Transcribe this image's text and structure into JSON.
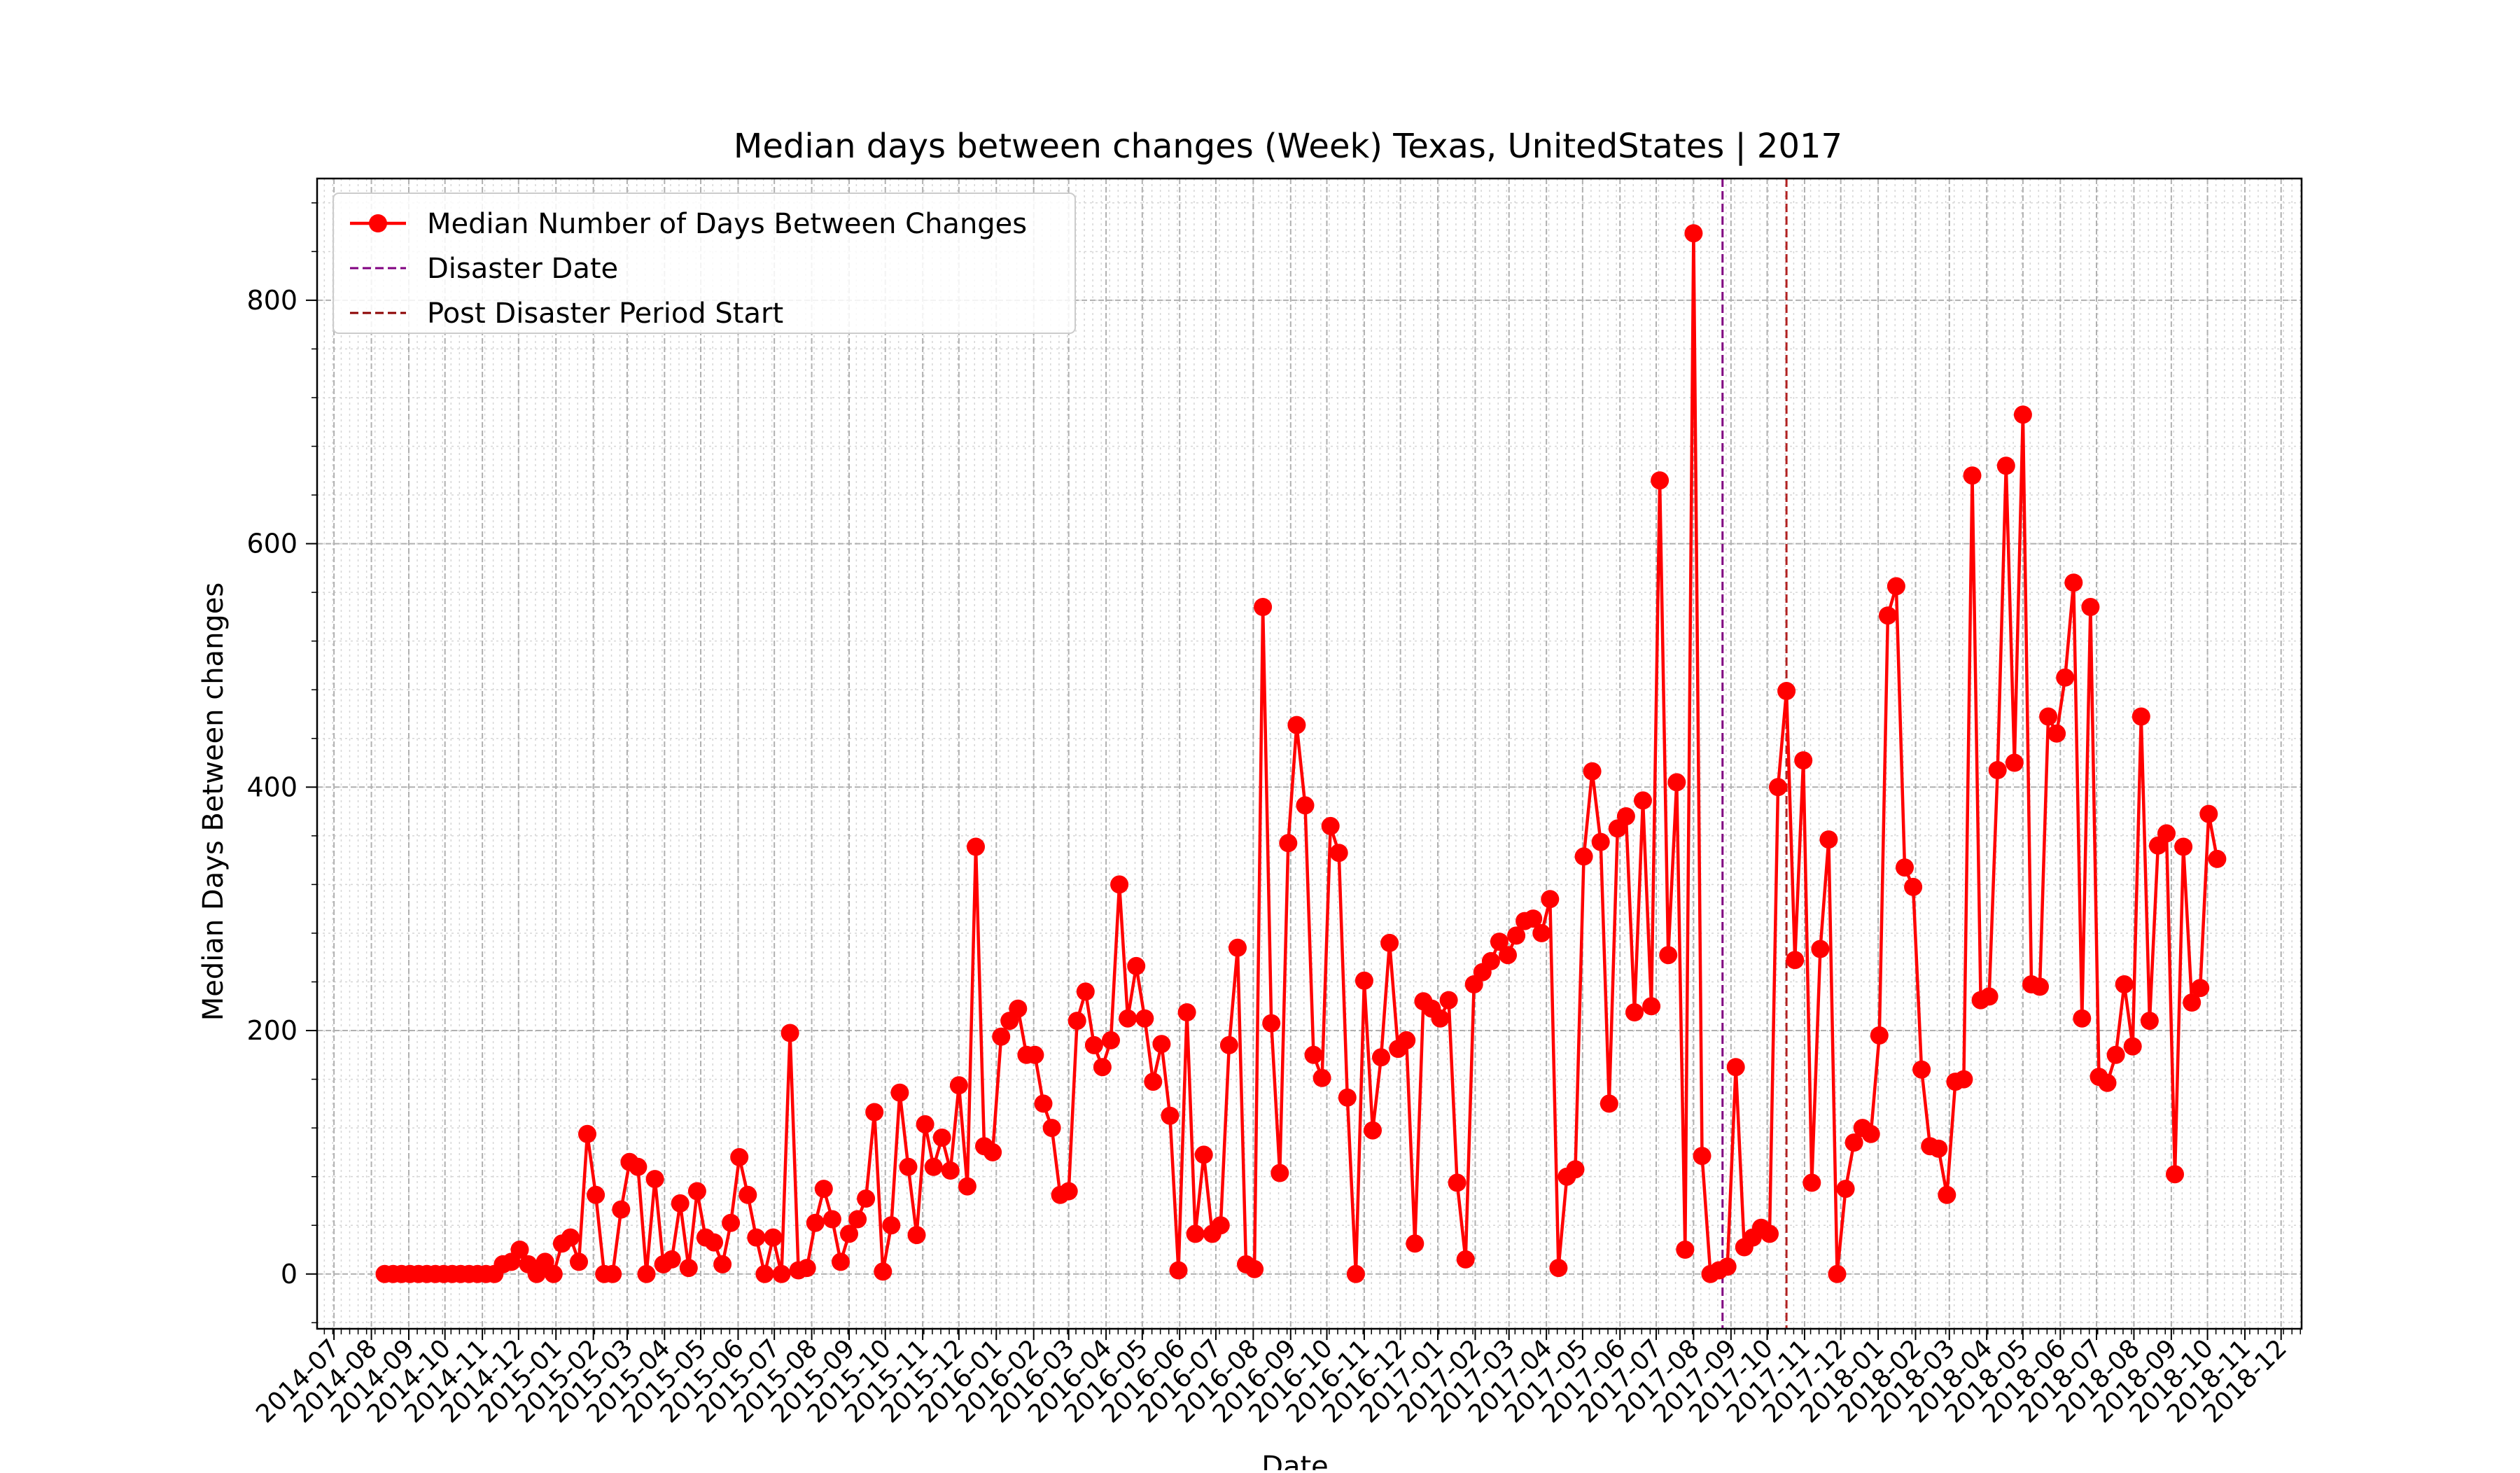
{
  "chart_data": {
    "type": "line",
    "title": "Median days between changes (Week) Texas, UnitedStates | 2017",
    "xlabel": "Date",
    "ylabel": "Median Days Between changes",
    "ylim": [
      -45,
      900
    ],
    "xlim": [
      "2014-06-17",
      "2018-12-18"
    ],
    "yticks": [
      0,
      200,
      400,
      600,
      800
    ],
    "xticks": [
      "2014-07",
      "2014-08",
      "2014-09",
      "2014-10",
      "2014-11",
      "2014-12",
      "2015-01",
      "2015-02",
      "2015-03",
      "2015-04",
      "2015-05",
      "2015-06",
      "2015-07",
      "2015-08",
      "2015-09",
      "2015-10",
      "2015-11",
      "2015-12",
      "2016-01",
      "2016-02",
      "2016-03",
      "2016-04",
      "2016-05",
      "2016-06",
      "2016-07",
      "2016-08",
      "2016-09",
      "2016-10",
      "2016-11",
      "2016-12",
      "2017-01",
      "2017-02",
      "2017-03",
      "2017-04",
      "2017-05",
      "2017-06",
      "2017-07",
      "2017-08",
      "2017-09",
      "2017-10",
      "2017-11",
      "2017-12",
      "2018-01",
      "2018-02",
      "2018-03",
      "2018-04",
      "2018-05",
      "2018-06",
      "2018-07",
      "2018-08",
      "2018-09",
      "2018-10",
      "2018-11",
      "2018-12"
    ],
    "grid": true,
    "legend_position": "top-left",
    "legend": [
      {
        "label": "Median Number of Days Between Changes",
        "color": "#ff0000",
        "style": "line-marker"
      },
      {
        "label": "Disaster Date",
        "color": "#800080",
        "style": "dashed"
      },
      {
        "label": "Post Disaster Period Start",
        "color": "#8b0000",
        "style": "dashed"
      }
    ],
    "vlines": [
      {
        "name": "Disaster Date",
        "x": "2017-08-25",
        "color": "#800080"
      },
      {
        "name": "Post Disaster Period Start",
        "x": "2017-10-17",
        "color": "#b22222"
      }
    ],
    "series": [
      {
        "name": "Median Number of Days Between Changes",
        "color": "#ff0000",
        "start": "2014-08-12",
        "interval": "weekly",
        "values": [
          0,
          0,
          0,
          0,
          0,
          0,
          0,
          0,
          0,
          0,
          0,
          0,
          0,
          0,
          8,
          10,
          20,
          8,
          0,
          10,
          0,
          25,
          30,
          10,
          115,
          65,
          0,
          0,
          53,
          92,
          88,
          0,
          78,
          8,
          12,
          58,
          5,
          68,
          30,
          26,
          8,
          42,
          96,
          65,
          30,
          0,
          30,
          0,
          198,
          3,
          5,
          42,
          70,
          45,
          10,
          33,
          45,
          62,
          133,
          2,
          40,
          149,
          88,
          32,
          123,
          88,
          112,
          85,
          155,
          72,
          351,
          105,
          100,
          195,
          208,
          218,
          180,
          180,
          140,
          120,
          65,
          68,
          208,
          232,
          188,
          170,
          192,
          320,
          210,
          253,
          210,
          158,
          189,
          130,
          3,
          215,
          33,
          98,
          33,
          40,
          188,
          268,
          8,
          4,
          548,
          206,
          83,
          354,
          451,
          385,
          180,
          161,
          368,
          346,
          145,
          0,
          241,
          118,
          178,
          272,
          185,
          192,
          25,
          224,
          218,
          210,
          225,
          75,
          12,
          238,
          248,
          257,
          273,
          262,
          278,
          290,
          292,
          280,
          308,
          5,
          80,
          86,
          343,
          413,
          355,
          140,
          366,
          376,
          215,
          389,
          220,
          652,
          262,
          404,
          20,
          855,
          97,
          0,
          3,
          6,
          170,
          22,
          30,
          38,
          33,
          400,
          479,
          258,
          422,
          75,
          267,
          357,
          0,
          70,
          108,
          120,
          115,
          196,
          541,
          565,
          334,
          318,
          168,
          105,
          103,
          65,
          158,
          160,
          656,
          225,
          228,
          414,
          664,
          420,
          706,
          238,
          236,
          458,
          444,
          490,
          568,
          210,
          548,
          162,
          157,
          180,
          238,
          187,
          458,
          208,
          352,
          362,
          82,
          351,
          223,
          235,
          378,
          341
        ]
      }
    ]
  }
}
